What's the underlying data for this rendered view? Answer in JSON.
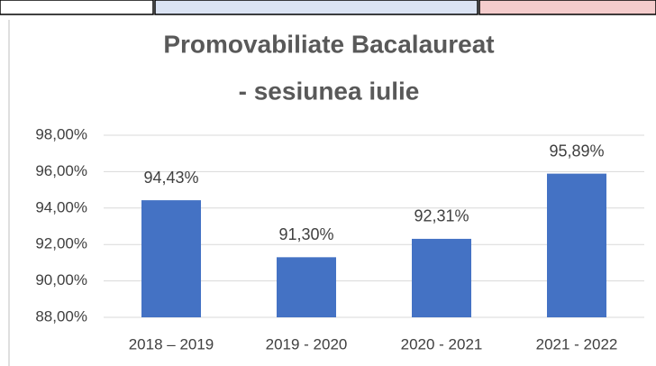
{
  "chart_data": {
    "type": "bar",
    "title": [
      "Promovabiliate Bacalaureat",
      "- sesiunea iulie"
    ],
    "categories": [
      "2018 – 2019",
      "2019 - 2020",
      "2020 - 2021",
      "2021 - 2022"
    ],
    "values": [
      94.43,
      91.3,
      92.31,
      95.89
    ],
    "value_labels": [
      "94,43%",
      "91,30%",
      "92,31%",
      "95,89%"
    ],
    "color": "#4472c4",
    "ylim": [
      88,
      98
    ],
    "yticks": [
      {
        "value": 88,
        "label": "88,00%"
      },
      {
        "value": 90,
        "label": "90,00%"
      },
      {
        "value": 92,
        "label": "92,00%"
      },
      {
        "value": 94,
        "label": "94,00%"
      },
      {
        "value": 96,
        "label": "96,00%"
      },
      {
        "value": 98,
        "label": "98,00%"
      }
    ],
    "grid": true
  }
}
